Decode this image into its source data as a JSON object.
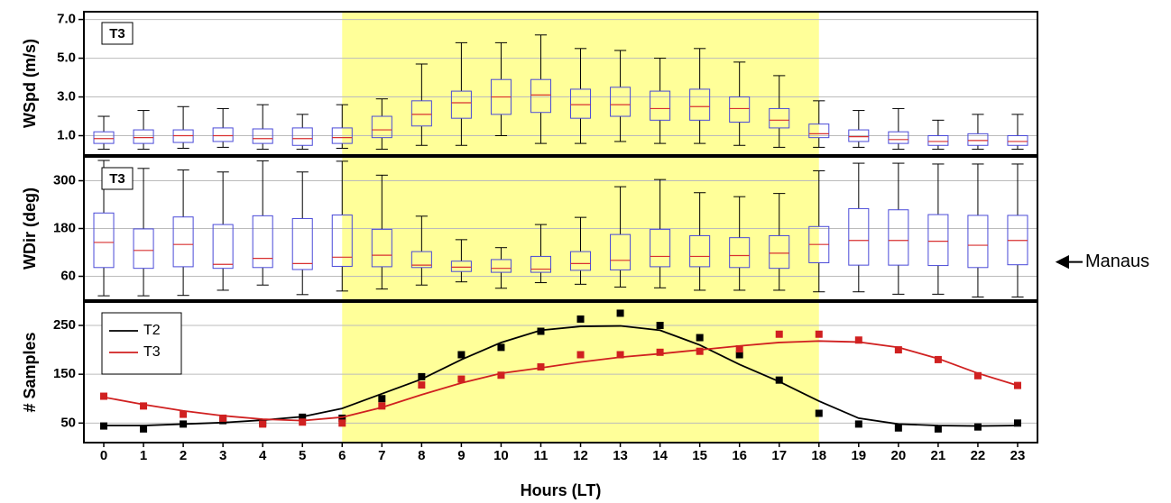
{
  "chart_data": [
    {
      "type": "box",
      "label": "T3",
      "ylabel": "WSpd (m/s)",
      "x": [
        0,
        1,
        2,
        3,
        4,
        5,
        6,
        7,
        8,
        9,
        10,
        11,
        12,
        13,
        14,
        15,
        16,
        17,
        18,
        19,
        20,
        21,
        22,
        23
      ],
      "xlim": [
        -0.5,
        23.5
      ],
      "ylim": [
        0,
        7.4
      ],
      "yticks": [
        {
          "value": 1,
          "label": "1.0"
        },
        {
          "value": 3,
          "label": "3.0"
        },
        {
          "value": 5,
          "label": "5.0"
        },
        {
          "value": 7,
          "label": "7.0"
        }
      ],
      "grid": true,
      "shade": [
        6,
        18
      ],
      "shade_color": "#ffff99",
      "box_color": "#4a4ad8",
      "median_color": "#d83030",
      "boxes": [
        [
          0.3,
          0.6,
          0.85,
          1.2,
          2.0
        ],
        [
          0.3,
          0.6,
          0.9,
          1.3,
          2.3
        ],
        [
          0.35,
          0.65,
          1.0,
          1.3,
          2.5
        ],
        [
          0.4,
          0.7,
          1.0,
          1.4,
          2.4
        ],
        [
          0.3,
          0.6,
          0.85,
          1.35,
          2.6
        ],
        [
          0.3,
          0.5,
          0.85,
          1.4,
          2.1
        ],
        [
          0.35,
          0.6,
          0.9,
          1.4,
          2.6
        ],
        [
          0.3,
          0.9,
          1.3,
          2.0,
          2.9
        ],
        [
          0.5,
          1.5,
          2.1,
          2.8,
          4.7
        ],
        [
          0.5,
          1.9,
          2.7,
          3.3,
          5.8
        ],
        [
          1.0,
          2.1,
          3.0,
          3.9,
          5.8
        ],
        [
          0.6,
          2.2,
          3.1,
          3.9,
          6.2
        ],
        [
          0.6,
          1.9,
          2.6,
          3.4,
          5.5
        ],
        [
          0.7,
          2.0,
          2.6,
          3.5,
          5.4
        ],
        [
          0.6,
          1.8,
          2.4,
          3.3,
          5.0
        ],
        [
          0.6,
          1.8,
          2.5,
          3.4,
          5.5
        ],
        [
          0.5,
          1.7,
          2.4,
          3.0,
          4.8
        ],
        [
          0.4,
          1.4,
          1.8,
          2.4,
          4.1
        ],
        [
          0.4,
          0.9,
          1.1,
          1.6,
          2.8
        ],
        [
          0.4,
          0.7,
          0.95,
          1.3,
          2.3
        ],
        [
          0.3,
          0.6,
          0.8,
          1.2,
          2.4
        ],
        [
          0.3,
          0.5,
          0.7,
          1.0,
          1.8
        ],
        [
          0.3,
          0.5,
          0.75,
          1.1,
          2.1
        ],
        [
          0.3,
          0.5,
          0.7,
          1.0,
          2.1
        ]
      ]
    },
    {
      "type": "box",
      "label": "T3",
      "ylabel": "WDir (deg)",
      "x": [
        0,
        1,
        2,
        3,
        4,
        5,
        6,
        7,
        8,
        9,
        10,
        11,
        12,
        13,
        14,
        15,
        16,
        17,
        18,
        19,
        20,
        21,
        22,
        23
      ],
      "xlim": [
        -0.5,
        23.5
      ],
      "ylim": [
        0,
        360
      ],
      "yticks": [
        60,
        180,
        300
      ],
      "grid": true,
      "shade": [
        6,
        18
      ],
      "shade_color": "#ffff99",
      "box_color": "#4a4ad8",
      "median_color": "#d83030",
      "annotation": {
        "text": "Manaus",
        "value": 96
      },
      "boxes": [
        [
          11,
          82,
          145,
          219,
          351
        ],
        [
          11,
          80,
          125,
          179,
          331
        ],
        [
          12,
          84,
          140,
          209,
          327
        ],
        [
          25,
          80,
          90,
          190,
          322
        ],
        [
          38,
          82,
          105,
          212,
          350
        ],
        [
          14,
          77,
          92,
          205,
          322
        ],
        [
          23,
          85,
          108,
          214,
          349
        ],
        [
          28,
          84,
          113,
          178,
          314
        ],
        [
          38,
          82,
          88,
          122,
          211
        ],
        [
          46,
          72,
          83,
          98,
          152
        ],
        [
          30,
          70,
          80,
          102,
          132
        ],
        [
          44,
          70,
          78,
          110,
          190
        ],
        [
          40,
          75,
          92,
          122,
          208
        ],
        [
          33,
          76,
          100,
          165,
          285
        ],
        [
          31,
          84,
          110,
          178,
          303
        ],
        [
          25,
          84,
          110,
          162,
          270
        ],
        [
          25,
          82,
          112,
          157,
          260
        ],
        [
          25,
          80,
          118,
          162,
          268
        ],
        [
          21,
          94,
          140,
          185,
          325
        ],
        [
          21,
          88,
          150,
          230,
          344
        ],
        [
          15,
          88,
          150,
          227,
          344
        ],
        [
          15,
          87,
          148,
          215,
          342
        ],
        [
          8,
          82,
          138,
          213,
          342
        ],
        [
          8,
          89,
          150,
          213,
          342
        ]
      ]
    },
    {
      "type": "line",
      "ylabel": "# Samples",
      "xlabel": "Hours (LT)",
      "x": [
        0,
        1,
        2,
        3,
        4,
        5,
        6,
        7,
        8,
        9,
        10,
        11,
        12,
        13,
        14,
        15,
        16,
        17,
        18,
        19,
        20,
        21,
        22,
        23
      ],
      "xlim": [
        -0.5,
        23.5
      ],
      "xticks": [
        0,
        1,
        2,
        3,
        4,
        5,
        6,
        7,
        8,
        9,
        10,
        11,
        12,
        13,
        14,
        15,
        16,
        17,
        18,
        19,
        20,
        21,
        22,
        23
      ],
      "ylim": [
        10,
        298
      ],
      "yticks": [
        50,
        150,
        250
      ],
      "grid": true,
      "shade": [
        6,
        18
      ],
      "shade_color": "#ffff99",
      "legend": "upper left",
      "series": [
        {
          "name": "T2",
          "color": "#000000",
          "values": [
            44,
            38,
            48,
            55,
            50,
            62,
            60,
            100,
            145,
            190,
            205,
            238,
            263,
            275,
            250,
            225,
            190,
            138,
            70,
            48,
            40,
            38,
            42,
            50
          ],
          "fit": [
            45,
            45,
            48,
            51,
            56,
            63,
            80,
            110,
            140,
            180,
            215,
            240,
            248,
            249,
            240,
            210,
            170,
            135,
            95,
            60,
            48,
            45,
            44,
            45
          ]
        },
        {
          "name": "T3",
          "color": "#d02020",
          "values": [
            105,
            85,
            68,
            60,
            48,
            52,
            50,
            85,
            128,
            140,
            148,
            165,
            190,
            190,
            195,
            197,
            202,
            232,
            232,
            220,
            200,
            180,
            147,
            127
          ],
          "fit": [
            103,
            88,
            75,
            65,
            58,
            55,
            62,
            82,
            108,
            132,
            152,
            163,
            175,
            185,
            192,
            200,
            208,
            215,
            218,
            216,
            205,
            182,
            152,
            127
          ]
        }
      ]
    }
  ]
}
